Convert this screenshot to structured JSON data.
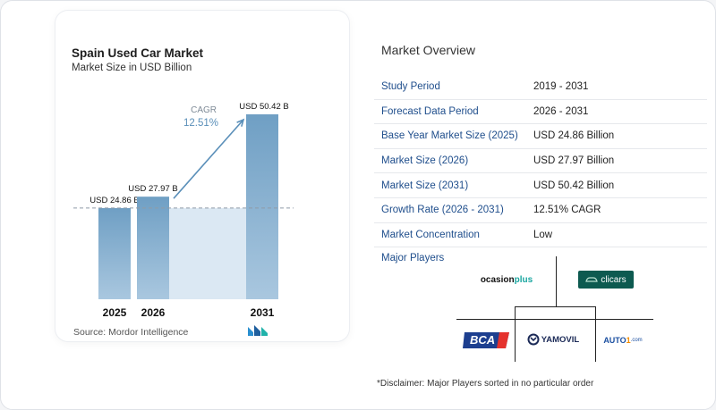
{
  "chart_data": {
    "type": "bar",
    "title": "Spain Used Car Market",
    "subtitle": "Market Size in USD Billion",
    "categories": [
      "2025",
      "2026",
      "2031"
    ],
    "values": [
      24.86,
      27.97,
      50.42
    ],
    "value_labels": [
      "USD 24.86 B",
      "USD 27.97 B",
      "USD 50.42 B"
    ],
    "ylim": [
      0,
      50.42
    ],
    "cagr_label": "CAGR",
    "cagr_value": "12.51%",
    "bar_color": "#6f9fc4",
    "bar_color_light": "#a9c7df",
    "shade_color": "#dbe8f3",
    "arrow_color": "#5a8fb9",
    "grid": false
  },
  "source": "Source:  Mordor Intelligence",
  "overview": {
    "title": "Market Overview",
    "rows": [
      {
        "label": "Study Period",
        "value": "2019 - 2031"
      },
      {
        "label": "Forecast Data Period",
        "value": "2026 - 2031"
      },
      {
        "label": "Base Year Market Size (2025)",
        "value": "USD 24.86 Billion"
      },
      {
        "label": "Market Size (2026)",
        "value": "USD 27.97 Billion"
      },
      {
        "label": "Market Size (2031)",
        "value": "USD 50.42 Billion"
      },
      {
        "label": "Growth Rate (2026 - 2031)",
        "value": "12.51% CAGR"
      },
      {
        "label": "Market Concentration",
        "value": "Low"
      }
    ]
  },
  "players": {
    "title": "Major Players",
    "logos": {
      "ocasion": "ocasion",
      "ocasion_plus": "plus",
      "clicars": "clicars",
      "bca": "BCA",
      "yamovil": "YAMOVIL",
      "auto1": "AUTO",
      "auto1_one": "1",
      "auto1_suffix": ".com"
    }
  },
  "disclaimer": "*Disclaimer: Major Players sorted in no particular order"
}
